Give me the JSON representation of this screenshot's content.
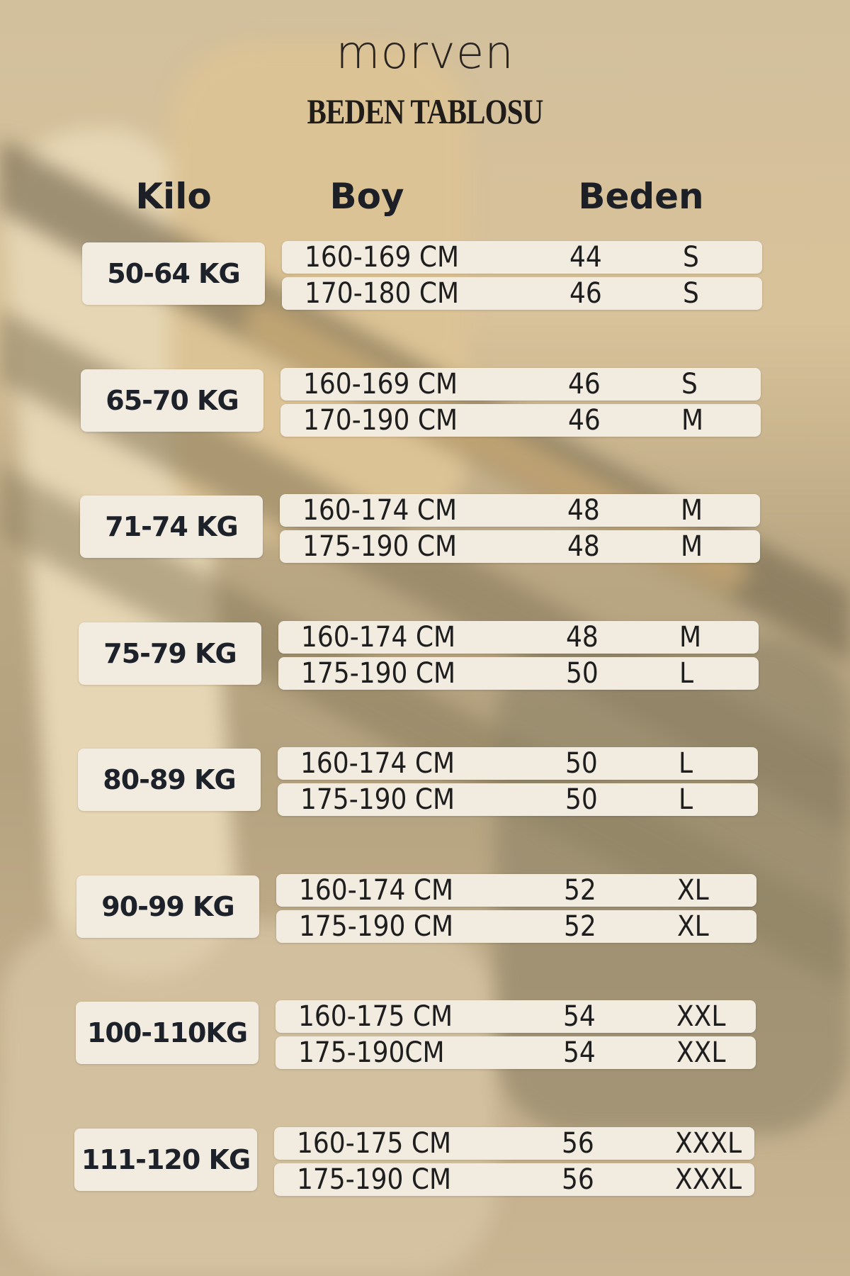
{
  "brand": "morven",
  "title": "BEDEN TABLOSU",
  "headers": {
    "kilo": "Kilo",
    "boy": "Boy",
    "beden": "Beden"
  },
  "groups": [
    {
      "kilo": "50-64 KG",
      "rows": [
        {
          "boy": "160-169 CM",
          "number": "44",
          "size": "S"
        },
        {
          "boy": "170-180 CM",
          "number": "46",
          "size": "S"
        }
      ]
    },
    {
      "kilo": "65-70 KG",
      "rows": [
        {
          "boy": "160-169 CM",
          "number": "46",
          "size": "S"
        },
        {
          "boy": "170-190 CM",
          "number": "46",
          "size": "M"
        }
      ]
    },
    {
      "kilo": "71-74 KG",
      "rows": [
        {
          "boy": "160-174 CM",
          "number": "48",
          "size": "M"
        },
        {
          "boy": "175-190 CM",
          "number": "48",
          "size": "M"
        }
      ]
    },
    {
      "kilo": "75-79 KG",
      "rows": [
        {
          "boy": "160-174 CM",
          "number": "48",
          "size": "M"
        },
        {
          "boy": "175-190 CM",
          "number": "50",
          "size": "L"
        }
      ]
    },
    {
      "kilo": "80-89 KG",
      "rows": [
        {
          "boy": "160-174 CM",
          "number": "50",
          "size": "L"
        },
        {
          "boy": "175-190 CM",
          "number": "50",
          "size": "L"
        }
      ]
    },
    {
      "kilo": "90-99 KG",
      "rows": [
        {
          "boy": "160-174 CM",
          "number": "52",
          "size": "XL"
        },
        {
          "boy": "175-190 CM",
          "number": "52",
          "size": "XL"
        }
      ]
    },
    {
      "kilo": "100-110KG",
      "rows": [
        {
          "boy": "160-175 CM",
          "number": "54",
          "size": "XXL"
        },
        {
          "boy": "175-190CM",
          "number": "54",
          "size": "XXL"
        }
      ]
    },
    {
      "kilo": "111-120 KG",
      "rows": [
        {
          "boy": "160-175 CM",
          "number": "56",
          "size": "XXXL"
        },
        {
          "boy": "175-190 CM",
          "number": "56",
          "size": "XXXL"
        }
      ]
    }
  ]
}
